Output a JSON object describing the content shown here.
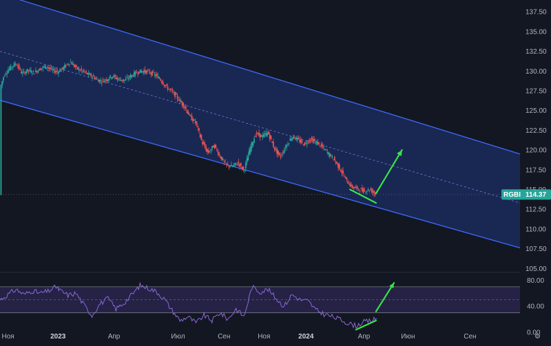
{
  "chart_data": [
    {
      "type": "line",
      "subtype": "candlestick",
      "title": "",
      "symbol": "RGBI",
      "last_value": "114.37",
      "y_axis_position": "right",
      "ylim": [
        104.5,
        139.0
      ],
      "yticks": [
        "137.50",
        "135.00",
        "132.50",
        "130.00",
        "127.50",
        "125.00",
        "122.50",
        "120.00",
        "117.50",
        "115.00",
        "112.50",
        "110.00",
        "107.50",
        "105.00"
      ],
      "price_series": [
        [
          0,
          127.8
        ],
        [
          2,
          129.5
        ],
        [
          5,
          130.4
        ],
        [
          8,
          131.0
        ],
        [
          11,
          129.7
        ],
        [
          14,
          130.1
        ],
        [
          17,
          129.8
        ],
        [
          20,
          130.3
        ],
        [
          23,
          130.6
        ],
        [
          26,
          130.1
        ],
        [
          29,
          129.9
        ],
        [
          32,
          130.5
        ],
        [
          35,
          131.2
        ],
        [
          38,
          130.4
        ],
        [
          41,
          130.0
        ],
        [
          44,
          129.6
        ],
        [
          47,
          129.2
        ],
        [
          50,
          128.7
        ],
        [
          53,
          128.9
        ],
        [
          56,
          129.4
        ],
        [
          59,
          129.0
        ],
        [
          62,
          128.8
        ],
        [
          65,
          129.3
        ],
        [
          68,
          129.8
        ],
        [
          71,
          130.0
        ],
        [
          74,
          129.9
        ],
        [
          77,
          129.6
        ],
        [
          80,
          129.0
        ],
        [
          83,
          128.0
        ],
        [
          86,
          127.4
        ],
        [
          89,
          126.5
        ],
        [
          92,
          125.6
        ],
        [
          95,
          124.2
        ],
        [
          98,
          123.4
        ],
        [
          101,
          121.0
        ],
        [
          104,
          119.6
        ],
        [
          107,
          120.6
        ],
        [
          110,
          119.2
        ],
        [
          113,
          118.1
        ],
        [
          116,
          117.9
        ],
        [
          119,
          118.4
        ],
        [
          122,
          117.4
        ],
        [
          125,
          120.2
        ],
        [
          128,
          122.1
        ],
        [
          131,
          121.7
        ],
        [
          134,
          122.2
        ],
        [
          137,
          120.3
        ],
        [
          140,
          119.1
        ],
        [
          143,
          120.5
        ],
        [
          146,
          121.7
        ],
        [
          149,
          121.3
        ],
        [
          152,
          120.7
        ],
        [
          155,
          121.4
        ],
        [
          158,
          121.0
        ],
        [
          161,
          120.4
        ],
        [
          164,
          119.6
        ],
        [
          167,
          118.8
        ],
        [
          170,
          117.6
        ],
        [
          173,
          116.2
        ],
        [
          176,
          115.3
        ],
        [
          179,
          115.1
        ],
        [
          182,
          114.8
        ],
        [
          185,
          115.0
        ],
        [
          188,
          114.37
        ]
      ],
      "channel": {
        "upper_start": [
          0,
          139.8
        ],
        "upper_end": [
          260,
          119.5
        ],
        "lower_start": [
          0,
          126.3
        ],
        "lower_end": [
          260,
          107.6
        ],
        "mid_start": [
          0,
          132.5
        ],
        "mid_end": [
          260,
          113.3
        ]
      },
      "annotations": [
        {
          "kind": "trendline",
          "color": "#39e34a",
          "from": [
            175,
            115.0
          ],
          "to": [
            188,
            113.3
          ]
        },
        {
          "kind": "arrow",
          "color": "#39e34a",
          "from": [
            188,
            114.5
          ],
          "to": [
            201,
            120.0
          ]
        }
      ]
    },
    {
      "type": "line",
      "title": "",
      "ylim": [
        0,
        90
      ],
      "yticks": [
        "80.00",
        "40.00",
        "0.00"
      ],
      "band": [
        30,
        70
      ],
      "mid": 50,
      "rsi_series": [
        [
          0,
          50
        ],
        [
          4,
          58
        ],
        [
          8,
          66
        ],
        [
          12,
          58
        ],
        [
          16,
          64
        ],
        [
          20,
          60
        ],
        [
          24,
          63
        ],
        [
          28,
          70
        ],
        [
          30,
          64
        ],
        [
          34,
          57
        ],
        [
          38,
          60
        ],
        [
          42,
          42
        ],
        [
          46,
          26
        ],
        [
          50,
          44
        ],
        [
          54,
          52
        ],
        [
          58,
          36
        ],
        [
          62,
          45
        ],
        [
          66,
          58
        ],
        [
          70,
          72
        ],
        [
          74,
          68
        ],
        [
          78,
          63
        ],
        [
          82,
          52
        ],
        [
          86,
          34
        ],
        [
          90,
          18
        ],
        [
          94,
          24
        ],
        [
          98,
          14
        ],
        [
          102,
          26
        ],
        [
          106,
          18
        ],
        [
          110,
          30
        ],
        [
          114,
          20
        ],
        [
          118,
          36
        ],
        [
          122,
          24
        ],
        [
          126,
          70
        ],
        [
          130,
          62
        ],
        [
          134,
          66
        ],
        [
          138,
          52
        ],
        [
          142,
          40
        ],
        [
          146,
          58
        ],
        [
          150,
          50
        ],
        [
          154,
          48
        ],
        [
          158,
          34
        ],
        [
          162,
          28
        ],
        [
          166,
          24
        ],
        [
          170,
          20
        ],
        [
          174,
          14
        ],
        [
          178,
          10
        ],
        [
          182,
          16
        ],
        [
          186,
          18
        ],
        [
          189,
          22
        ]
      ],
      "annotations": [
        {
          "kind": "trendline",
          "color": "#39e34a",
          "from": [
            178,
            4
          ],
          "to": [
            188,
            18
          ]
        },
        {
          "kind": "arrow",
          "color": "#39e34a",
          "from": [
            188,
            32
          ],
          "to": [
            197,
            76
          ]
        }
      ]
    }
  ],
  "x_axis": {
    "range": [
      0,
      260
    ],
    "ticks": [
      {
        "label": "Ноя",
        "x": 4,
        "bold": false
      },
      {
        "label": "2023",
        "x": 29,
        "bold": true
      },
      {
        "label": "Апр",
        "x": 57,
        "bold": false
      },
      {
        "label": "Июл",
        "x": 89,
        "bold": false
      },
      {
        "label": "Сен",
        "x": 112,
        "bold": false
      },
      {
        "label": "Ноя",
        "x": 132,
        "bold": false
      },
      {
        "label": "2024",
        "x": 153,
        "bold": true
      },
      {
        "label": "Апр",
        "x": 182,
        "bold": false
      },
      {
        "label": "Июн",
        "x": 204,
        "bold": false
      },
      {
        "label": "Сен",
        "x": 235,
        "bold": false
      }
    ]
  },
  "colors": {
    "background": "#131722",
    "channel_fill": "#1b2a5c",
    "channel_line": "#3d6bff",
    "candle_up": "#26a69a",
    "candle_down": "#ef5350",
    "rsi_line": "#8c6ad6",
    "rsi_band": "#2a2550",
    "badge": "#26a69a"
  },
  "settings_icon": "gear-icon"
}
